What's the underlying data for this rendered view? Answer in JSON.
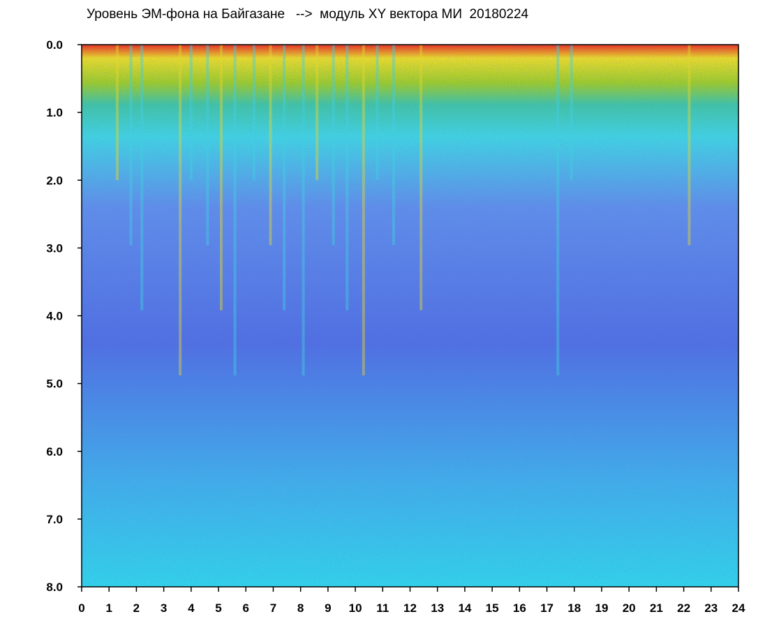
{
  "chart_data": {
    "type": "heatmap",
    "title": "Уровень ЭМ-фона на Байгазане   -->  модуль XY вектора МИ  20180224",
    "xlabel": "",
    "ylabel": "",
    "xlim": [
      0,
      24
    ],
    "ylim": [
      8.0,
      0.0
    ],
    "x_ticks": [
      "0",
      "1",
      "2",
      "3",
      "4",
      "5",
      "6",
      "7",
      "8",
      "9",
      "10",
      "11",
      "12",
      "13",
      "14",
      "15",
      "16",
      "17",
      "18",
      "19",
      "20",
      "21",
      "22",
      "23",
      "24"
    ],
    "y_ticks": [
      "0.0",
      "1.0",
      "2.0",
      "3.0",
      "4.0",
      "5.0",
      "6.0",
      "7.0",
      "8.0"
    ],
    "color_scale": [
      "#1a1adc",
      "#5a78e8",
      "#30e0e8",
      "#20b020",
      "#f0e020",
      "#f03018"
    ],
    "grid": false,
    "legend": "none"
  }
}
